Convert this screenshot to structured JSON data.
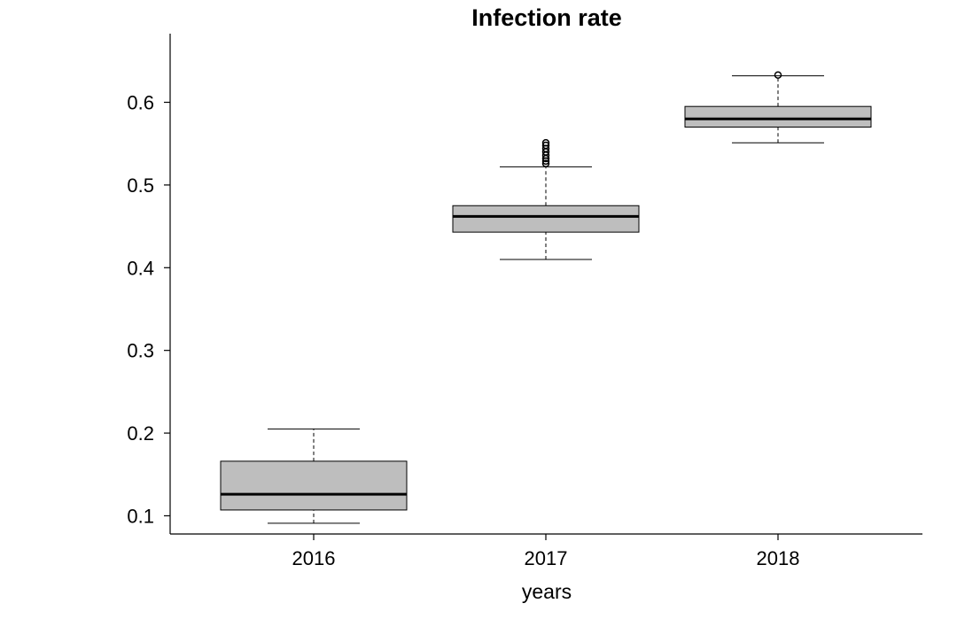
{
  "chart_data": {
    "type": "boxplot",
    "title": "Infection rate",
    "xlabel": "years",
    "ylabel": "",
    "ylim": [
      0.078,
      0.683
    ],
    "yticks": [
      0.1,
      0.2,
      0.3,
      0.4,
      0.5,
      0.6
    ],
    "ytick_labels": [
      "0.1",
      "0.2",
      "0.3",
      "0.4",
      "0.5",
      "0.6"
    ],
    "categories": [
      "2016",
      "2017",
      "2018"
    ],
    "box_fill_color": "#bebebe",
    "line_color": "#000000",
    "grid": false,
    "legend": "none",
    "series": [
      {
        "category": "2016",
        "whisker_low": 0.091,
        "q1": 0.107,
        "median": 0.126,
        "q3": 0.166,
        "whisker_high": 0.205,
        "outliers": []
      },
      {
        "category": "2017",
        "whisker_low": 0.41,
        "q1": 0.443,
        "median": 0.462,
        "q3": 0.475,
        "whisker_high": 0.522,
        "outliers": [
          0.526,
          0.529,
          0.532,
          0.536,
          0.54,
          0.544,
          0.548,
          0.551
        ]
      },
      {
        "category": "2018",
        "whisker_low": 0.551,
        "q1": 0.57,
        "median": 0.58,
        "q3": 0.595,
        "whisker_high": 0.632,
        "outliers": [
          0.633
        ]
      }
    ]
  }
}
